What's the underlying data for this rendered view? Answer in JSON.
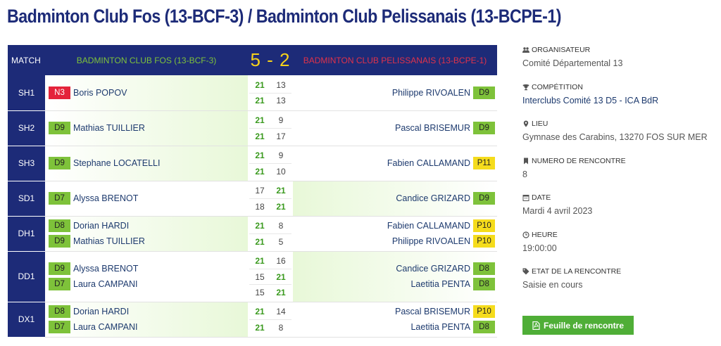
{
  "page": {
    "title": "Badminton Club Fos (13-BCF-3) / Badminton Club Pelissanais (13-BCPE-1)"
  },
  "header": {
    "match_label": "MATCH",
    "team1": "BADMINTON CLUB FOS (13-BCF-3)",
    "score": "5 - 2",
    "team2": "BADMINTON CLUB PELISSANAIS (13-BCPE-1)"
  },
  "colors": {
    "navy": "#1d2b78",
    "green_rank": "#7ec23a",
    "yellow_rank": "#f5dc1c",
    "red_rank": "#e4233a",
    "win_score": "#3a9a1e",
    "button": "#4fae37"
  },
  "matches": [
    {
      "discipline": "SH1",
      "winner": "left",
      "left": [
        {
          "rank": "N3",
          "rank_color": "red",
          "name": "Boris POPOV"
        }
      ],
      "right": [
        {
          "rank": "D9",
          "rank_color": "green",
          "name": "Philippe RIVOALEN"
        }
      ],
      "sets": [
        [
          "21",
          "13"
        ],
        [
          "21",
          "13"
        ]
      ]
    },
    {
      "discipline": "SH2",
      "winner": "left",
      "left": [
        {
          "rank": "D9",
          "rank_color": "green",
          "name": "Mathias TUILLIER"
        }
      ],
      "right": [
        {
          "rank": "D9",
          "rank_color": "green",
          "name": "Pascal BRISEMUR"
        }
      ],
      "sets": [
        [
          "21",
          "9"
        ],
        [
          "21",
          "17"
        ]
      ]
    },
    {
      "discipline": "SH3",
      "winner": "left",
      "left": [
        {
          "rank": "D9",
          "rank_color": "green",
          "name": "Stephane LOCATELLI"
        }
      ],
      "right": [
        {
          "rank": "P11",
          "rank_color": "yellow",
          "name": "Fabien CALLAMAND"
        }
      ],
      "sets": [
        [
          "21",
          "9"
        ],
        [
          "21",
          "10"
        ]
      ]
    },
    {
      "discipline": "SD1",
      "winner": "right",
      "left": [
        {
          "rank": "D7",
          "rank_color": "green",
          "name": "Alyssa BRENOT"
        }
      ],
      "right": [
        {
          "rank": "D9",
          "rank_color": "green",
          "name": "Candice GRIZARD"
        }
      ],
      "sets": [
        [
          "17",
          "21"
        ],
        [
          "18",
          "21"
        ]
      ]
    },
    {
      "discipline": "DH1",
      "winner": "left",
      "left": [
        {
          "rank": "D8",
          "rank_color": "green",
          "name": "Dorian HARDI"
        },
        {
          "rank": "D9",
          "rank_color": "green",
          "name": "Mathias TUILLIER"
        }
      ],
      "right": [
        {
          "rank": "P10",
          "rank_color": "yellow",
          "name": "Fabien CALLAMAND"
        },
        {
          "rank": "P10",
          "rank_color": "yellow",
          "name": "Philippe RIVOALEN"
        }
      ],
      "sets": [
        [
          "21",
          "8"
        ],
        [
          "21",
          "5"
        ]
      ]
    },
    {
      "discipline": "DD1",
      "winner": "right",
      "left": [
        {
          "rank": "D9",
          "rank_color": "green",
          "name": "Alyssa BRENOT"
        },
        {
          "rank": "D7",
          "rank_color": "green",
          "name": "Laura CAMPANI"
        }
      ],
      "right": [
        {
          "rank": "D8",
          "rank_color": "green",
          "name": "Candice GRIZARD"
        },
        {
          "rank": "D8",
          "rank_color": "green",
          "name": "Laetitia PENTA"
        }
      ],
      "sets": [
        [
          "21",
          "16"
        ],
        [
          "15",
          "21"
        ],
        [
          "15",
          "21"
        ]
      ]
    },
    {
      "discipline": "DX1",
      "winner": "left",
      "left": [
        {
          "rank": "D8",
          "rank_color": "green",
          "name": "Dorian HARDI"
        },
        {
          "rank": "D7",
          "rank_color": "green",
          "name": "Laura CAMPANI"
        }
      ],
      "right": [
        {
          "rank": "P10",
          "rank_color": "yellow",
          "name": "Pascal BRISEMUR"
        },
        {
          "rank": "D8",
          "rank_color": "green",
          "name": "Laetitia PENTA"
        }
      ],
      "sets": [
        [
          "21",
          "14"
        ],
        [
          "21",
          "8"
        ]
      ]
    }
  ],
  "info": [
    {
      "icon": "users-icon",
      "label": "ORGANISATEUR",
      "value": "Comité Départemental 13",
      "link": false
    },
    {
      "icon": "trophy-icon",
      "label": "COMPÉTITION",
      "value": "Interclubs Comité 13 D5 - ICA BdR",
      "link": true
    },
    {
      "icon": "map-marker-icon",
      "label": "LIEU",
      "value": "Gymnase des Carabins, 13270 FOS SUR MER",
      "link": false
    },
    {
      "icon": "bookmark-icon",
      "label": "NUMERO DE RENCONTRE",
      "value": "8",
      "link": false
    },
    {
      "icon": "calendar-icon",
      "label": "DATE",
      "value": "Mardi 4 avril 2023",
      "link": false
    },
    {
      "icon": "clock-icon",
      "label": "HEURE",
      "value": "19:00:00",
      "link": false
    },
    {
      "icon": "tag-icon",
      "label": "ETAT DE LA RENCONTRE",
      "value": "Saisie en cours",
      "link": false
    }
  ],
  "sheet_button": {
    "label": "Feuille de rencontre",
    "icon": "pdf-icon"
  }
}
